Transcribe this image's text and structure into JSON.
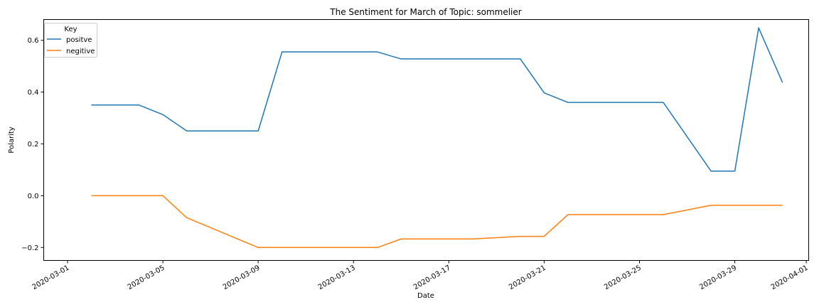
{
  "chart_data": {
    "type": "line",
    "title": "The Sentiment for March of Topic: sommelier",
    "xlabel": "Date",
    "ylabel": "Polarity",
    "xlim": [
      "2020-02-29",
      "2020-04-01"
    ],
    "ylim": [
      -0.25,
      0.68
    ],
    "x_ticks": [
      "2020-03-01",
      "2020-03-05",
      "2020-03-09",
      "2020-03-13",
      "2020-03-17",
      "2020-03-21",
      "2020-03-25",
      "2020-03-29",
      "2020-04-01"
    ],
    "y_ticks": [
      -0.2,
      0.0,
      0.2,
      0.4,
      0.6
    ],
    "y_tick_labels": [
      "−0.2",
      "0.0",
      "0.2",
      "0.4",
      "0.6"
    ],
    "grid": false,
    "legend": {
      "title": "Key",
      "placement": "top-left"
    },
    "x": [
      "2020-03-02",
      "2020-03-04",
      "2020-03-05",
      "2020-03-06",
      "2020-03-09",
      "2020-03-10",
      "2020-03-14",
      "2020-03-15",
      "2020-03-18",
      "2020-03-20",
      "2020-03-21",
      "2020-03-22",
      "2020-03-26",
      "2020-03-28",
      "2020-03-29",
      "2020-03-30",
      "2020-03-31"
    ],
    "series": [
      {
        "name": "positve",
        "color": "#1f77b4",
        "values": [
          0.35,
          0.35,
          0.313,
          0.25,
          0.25,
          0.555,
          0.555,
          0.528,
          0.528,
          0.528,
          0.397,
          0.36,
          0.36,
          0.095,
          0.095,
          0.648,
          0.437
        ]
      },
      {
        "name": "negitive",
        "color": "#ff7f0e",
        "values": [
          0.0,
          0.0,
          0.0,
          -0.085,
          -0.2,
          -0.2,
          -0.2,
          -0.167,
          -0.167,
          -0.157,
          -0.157,
          -0.073,
          -0.073,
          -0.037,
          -0.037,
          -0.037,
          -0.037
        ]
      }
    ]
  }
}
